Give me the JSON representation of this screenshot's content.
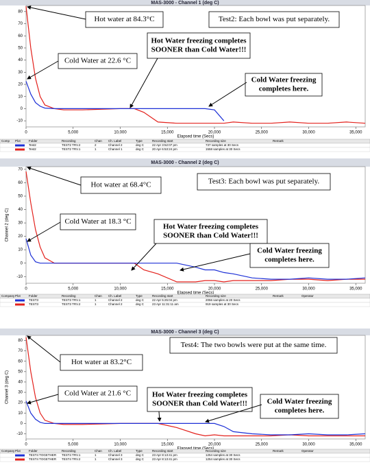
{
  "chart_data": [
    {
      "type": "line",
      "title": "MAS-3000 - Channel 1 (deg C)",
      "xlabel": "Elapsed time (Secs)",
      "x": [
        0,
        500,
        1000,
        1500,
        2000,
        3000,
        4000,
        6000,
        8000,
        10000,
        11500,
        12500,
        14000,
        16000,
        18000,
        19000,
        20000,
        21000,
        22000,
        24000,
        26000,
        28000,
        30000,
        32000,
        34000,
        36000
      ],
      "series": [
        {
          "color": "#e3201b",
          "values": [
            84.3,
            50,
            25,
            10,
            3,
            0,
            -1,
            -1,
            -0.5,
            0,
            0,
            -3,
            -11,
            -12,
            -12,
            -12,
            -12,
            -12,
            -11,
            -12,
            -12,
            -11,
            -12,
            -12,
            -11,
            -12
          ]
        },
        {
          "color": "#1c2fd6",
          "values": [
            22.6,
            12,
            5,
            2,
            0.5,
            0,
            0,
            0,
            0,
            0,
            0,
            0,
            0,
            0,
            0,
            0,
            -1,
            -10,
            null,
            null,
            null,
            null,
            null,
            null,
            null,
            null
          ]
        }
      ],
      "xlim": [
        0,
        36000
      ],
      "ylim": [
        -15,
        85
      ],
      "xticks": [
        0,
        {
          "value": 5000,
          "label": "5,000"
        },
        {
          "value": 10000,
          "label": "10,000"
        },
        {
          "value": 15000,
          "label": "15,000"
        },
        {
          "value": 20000,
          "label": "20,000"
        },
        {
          "value": 25000,
          "label": "25,000"
        },
        {
          "value": 30000,
          "label": "30,000"
        },
        {
          "value": 35000,
          "label": "35,000"
        }
      ],
      "yticks": [
        -10,
        0,
        10,
        20,
        30,
        40,
        50,
        60,
        70,
        80
      ],
      "annotations": [
        [
          "Hot water at 84.3°C"
        ],
        [
          "Test2: Each bowl was put separately."
        ],
        [
          "Cold Water at 22.6 °C"
        ],
        [
          "Hot Water freezing completes",
          "SOONER than Cold Water!!!"
        ],
        [
          "Cold Water freezing",
          "completes here."
        ]
      ],
      "table": {
        "header": [
          "Comp",
          "Plot",
          "Folder",
          "Recording",
          "Chan",
          "Ch. Label",
          "Type",
          "Recording start",
          "Recording size",
          "Remark"
        ],
        "rows": [
          [
            "",
            "",
            "Test2",
            "TEST2 TRV.2",
            "2",
            "Channel 2",
            "deg C",
            "22 Apr 3:52:07 pm",
            "737 samples at 30 Secs",
            ""
          ],
          [
            "",
            "",
            "Test2",
            "TEST2 TRV.1",
            "1",
            "Channel 1",
            "deg C",
            "20 Apr 6:53:24 pm",
            "1558 samples at 30 Secs",
            ""
          ]
        ]
      }
    },
    {
      "type": "line",
      "title": "MAS-3000 - Channel 2 (deg C)",
      "xlabel": "Elapsed time (Secs)",
      "ylabel": "Channel 2 (deg C)",
      "x": [
        0,
        500,
        1000,
        1500,
        2000,
        3000,
        4000,
        6000,
        8000,
        10000,
        11500,
        12500,
        14000,
        16000,
        18000,
        19000,
        20000,
        21000,
        22000,
        24000,
        26000,
        28000,
        30000,
        32000,
        34000,
        36000
      ],
      "series": [
        {
          "color": "#e3201b",
          "values": [
            68.4,
            45,
            25,
            12,
            4,
            0,
            0,
            0,
            0,
            0,
            0,
            -5,
            -8,
            -14,
            -14,
            -13,
            -13,
            -14,
            -13,
            -13,
            -13,
            -12,
            -12,
            -13,
            -12,
            -12
          ]
        },
        {
          "color": "#1c2fd6",
          "values": [
            18.3,
            6,
            1,
            0,
            0,
            0,
            0,
            0,
            0,
            0,
            0,
            0,
            0,
            0,
            -3,
            -5,
            -5,
            -7,
            -8,
            -11,
            -12,
            -12,
            -11,
            -12,
            -12,
            -11
          ]
        }
      ],
      "xlim": [
        0,
        36000
      ],
      "ylim": [
        -15,
        72
      ],
      "xticks": [
        0,
        {
          "value": 5000,
          "label": "5,000"
        },
        {
          "value": 10000,
          "label": "10,000"
        },
        {
          "value": 15000,
          "label": "15,000"
        },
        {
          "value": 20000,
          "label": "20,000"
        },
        {
          "value": 25000,
          "label": "25,000"
        },
        {
          "value": 30000,
          "label": "30,000"
        },
        {
          "value": 35000,
          "label": "35,000"
        }
      ],
      "yticks": [
        -10,
        0,
        10,
        20,
        30,
        40,
        50,
        60,
        70
      ],
      "annotations": [
        [
          "Hot water at 68.4°C"
        ],
        [
          "Test3: Each bowl was put separately."
        ],
        [
          "Cold Water at 18.3 °C"
        ],
        [
          "Hot Water freezing completes",
          "SOONER than Cold Water!!!"
        ],
        [
          "Cold Water freezing",
          "completes here."
        ]
      ],
      "table": {
        "header": [
          "Company",
          "Plot",
          "Folder",
          "Recording",
          "Chan",
          "Ch. Label",
          "Type",
          "Recording start",
          "Recording size",
          "Remark",
          "Operator"
        ],
        "rows": [
          [
            "",
            "",
            "TEST3",
            "TEST3 TRV.1",
            "1",
            "Channel 2",
            "deg C",
            "22 Apr 5:25:04 pm",
            "2056 samples at 20 Secs",
            "",
            ""
          ],
          [
            "",
            "",
            "TEST3",
            "TEST3 TRV.2",
            "1",
            "Channel 2",
            "deg C",
            "23 Apr 11:31:11 am",
            "919 samples at 30 Secs",
            "",
            ""
          ]
        ]
      }
    },
    {
      "type": "line",
      "title": "MAS-3000 - Channel 3 (deg C)",
      "xlabel": "Elapsed time (Secs)",
      "ylabel": "Channel 3 (deg C)",
      "x": [
        0,
        500,
        1000,
        1500,
        2000,
        3000,
        4000,
        6000,
        8000,
        10000,
        11500,
        12500,
        14000,
        16000,
        18000,
        19000,
        20000,
        21000,
        22000,
        24000,
        26000,
        28000,
        30000,
        32000,
        34000,
        36000
      ],
      "series": [
        {
          "color": "#e3201b",
          "values": [
            83.2,
            50,
            25,
            10,
            3,
            0,
            -1,
            -1,
            -0.5,
            0,
            0,
            0,
            0,
            -4,
            -10,
            -12,
            -11,
            -12,
            -12,
            -12,
            -12,
            -11,
            -12,
            -12,
            -12,
            -12
          ]
        },
        {
          "color": "#1c2fd6",
          "values": [
            21.6,
            10,
            4,
            1,
            0,
            0,
            0,
            0,
            0,
            0,
            0,
            0,
            0,
            0,
            0,
            0,
            0,
            -3,
            -8,
            -10,
            -11,
            -11,
            -10,
            -11,
            -11,
            -10
          ]
        }
      ],
      "xlim": [
        0,
        36000
      ],
      "ylim": [
        -15,
        85
      ],
      "xticks": [
        0,
        {
          "value": 5000,
          "label": "5,000"
        },
        {
          "value": 10000,
          "label": "10,000"
        },
        {
          "value": 15000,
          "label": "15,000"
        },
        {
          "value": 20000,
          "label": "20,000"
        },
        {
          "value": 25000,
          "label": "25,000"
        },
        {
          "value": 30000,
          "label": "30,000"
        },
        {
          "value": 35000,
          "label": "35,000"
        }
      ],
      "yticks": [
        -10,
        0,
        10,
        20,
        30,
        40,
        50,
        60,
        70,
        80
      ],
      "annotations": [
        [
          "Test4: The two bowls were put at the same time."
        ],
        [
          "Hot water at 83.2°C"
        ],
        [
          "Cold Water at 21.6 °C"
        ],
        [
          "Hot Water freezing completes",
          "SOONER than Cold Water!!!"
        ],
        [
          "Cold Water freezing",
          "completes here."
        ]
      ],
      "table": {
        "header": [
          "Company",
          "Plot",
          "Folder",
          "Recording",
          "Chan",
          "Ch. Label",
          "Type",
          "Recording start",
          "Recording size",
          "Remark",
          "Operator"
        ],
        "rows": [
          [
            "",
            "",
            "TEST4 TOGETHER",
            "TEST4 TRV.1",
            "1",
            "Channel 3",
            "deg C",
            "23 Apr 8:13:41 pm",
            "1254 samples at 30 Secs",
            "",
            ""
          ],
          [
            "",
            "",
            "TEST4 TOGETHER",
            "TEST4 TRV.2",
            "1",
            "Channel 3",
            "deg C",
            "23 Apr 8:13:41 pm",
            "1254 samples at 30 Secs",
            "",
            ""
          ]
        ]
      }
    }
  ]
}
